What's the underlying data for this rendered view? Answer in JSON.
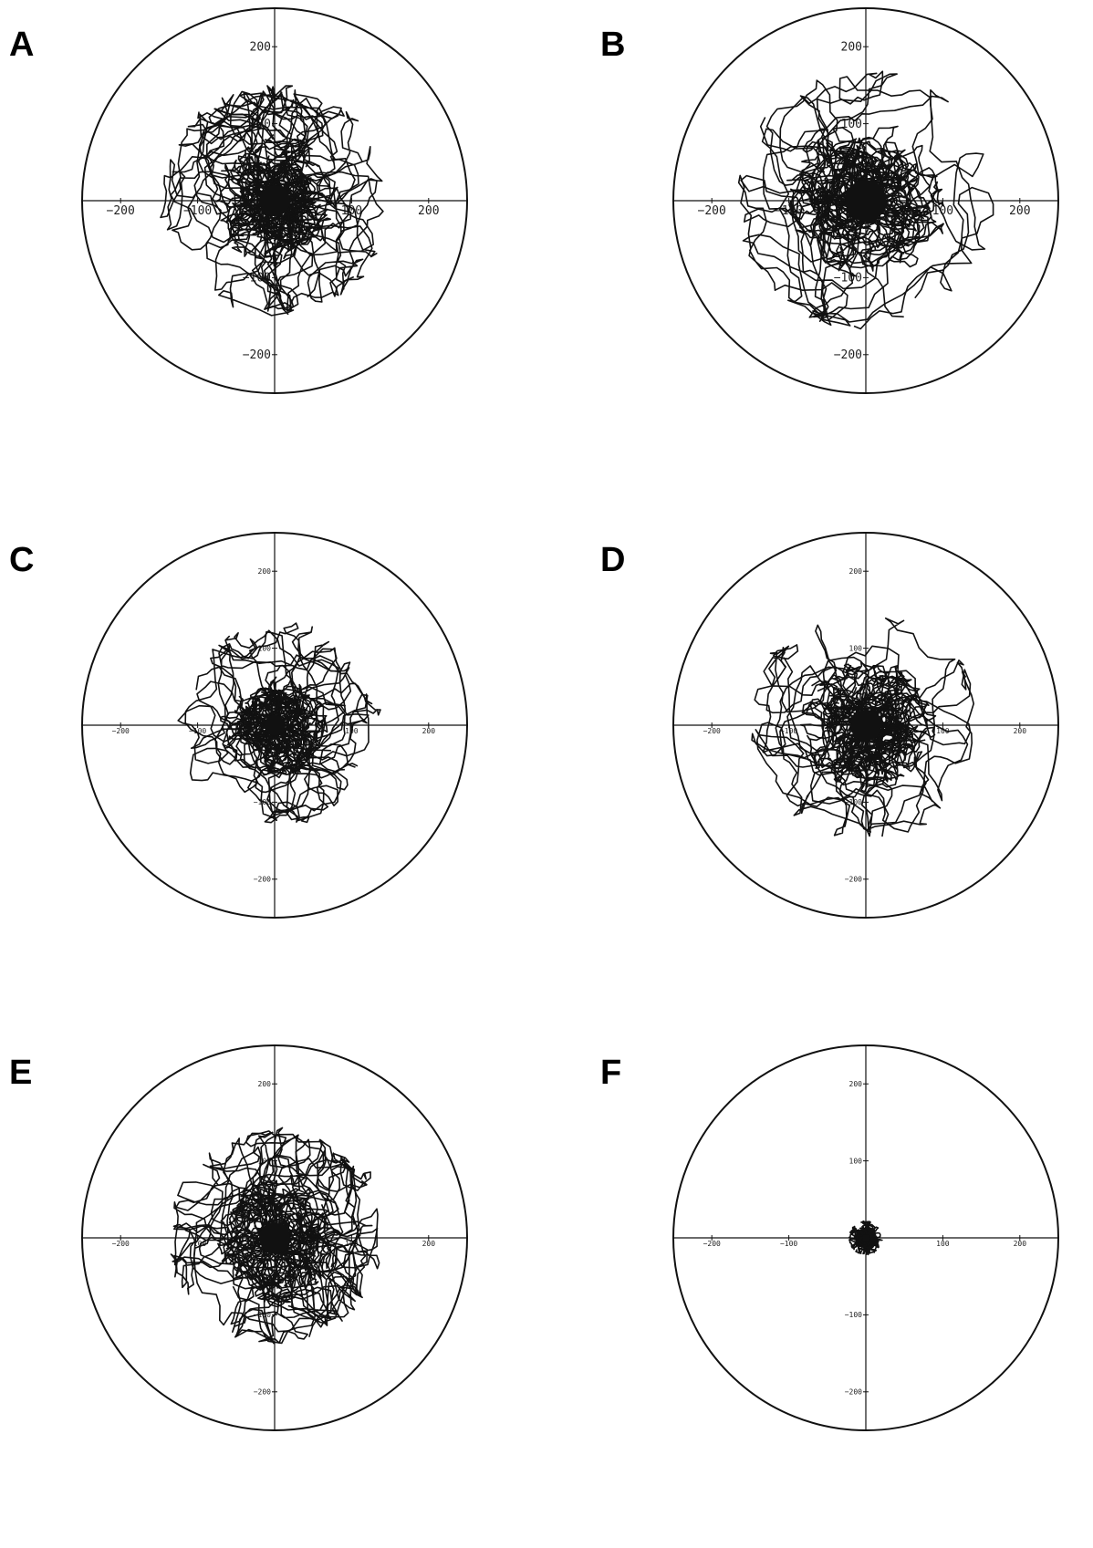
{
  "chart_data": [
    {
      "panel": "A",
      "type": "line",
      "scale": "large",
      "xlim": [
        -250,
        250
      ],
      "ylim": [
        -250,
        250
      ],
      "ticks": [
        -200,
        -100,
        100,
        200
      ],
      "circle_radius": 250,
      "grid": false,
      "spread": {
        "core": 45,
        "outer": 150
      }
    },
    {
      "panel": "B",
      "type": "line",
      "scale": "large",
      "xlim": [
        -250,
        250
      ],
      "ylim": [
        -250,
        250
      ],
      "ticks": [
        -200,
        -100,
        100,
        200
      ],
      "circle_radius": 250,
      "grid": false,
      "spread": {
        "core": 60,
        "outer": 170
      }
    },
    {
      "panel": "C",
      "type": "line",
      "scale": "small",
      "xlim": [
        -250,
        250
      ],
      "ylim": [
        -250,
        250
      ],
      "ticks": [
        -200,
        -100,
        100,
        200
      ],
      "circle_radius": 250,
      "grid": false,
      "spread": {
        "core": 30,
        "outer": 130
      }
    },
    {
      "panel": "D",
      "type": "line",
      "scale": "small",
      "xlim": [
        -250,
        250
      ],
      "ylim": [
        -250,
        250
      ],
      "ticks": [
        -200,
        -100,
        100,
        200
      ],
      "circle_radius": 250,
      "grid": false,
      "spread": {
        "core": 45,
        "outer": 150
      }
    },
    {
      "panel": "E",
      "type": "line",
      "scale": "small",
      "xlim": [
        -250,
        250
      ],
      "ylim": [
        -250,
        250
      ],
      "ticks": [
        -200,
        -100,
        100,
        200
      ],
      "circle_radius": 250,
      "grid": false,
      "spread": {
        "core": 45,
        "outer": 140
      }
    },
    {
      "panel": "F",
      "type": "line",
      "scale": "small",
      "xlim": [
        -250,
        250
      ],
      "ylim": [
        -250,
        250
      ],
      "ticks": [
        -200,
        -100,
        100,
        200
      ],
      "circle_radius": 250,
      "grid": false,
      "spread": {
        "core": 10,
        "outer": 22
      }
    }
  ]
}
